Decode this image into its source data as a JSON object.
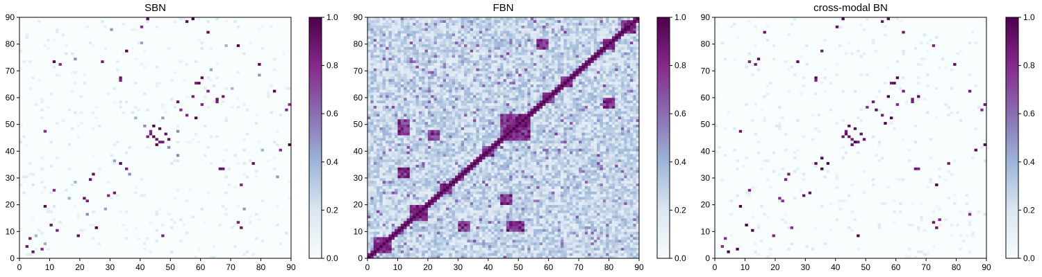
{
  "chart_data": [
    {
      "type": "heatmap",
      "title": "SBN",
      "xlim": [
        0,
        90
      ],
      "ylim": [
        0,
        90
      ],
      "xticks": [
        0,
        10,
        20,
        30,
        40,
        50,
        60,
        70,
        80,
        90
      ],
      "yticks": [
        0,
        10,
        20,
        30,
        40,
        50,
        60,
        70,
        80,
        90
      ],
      "colorbar": {
        "range": [
          0,
          1
        ],
        "ticks": [
          "0.0",
          "0.2",
          "0.4",
          "0.6",
          "0.8",
          "1.0"
        ]
      },
      "pattern": "sparse",
      "strong_cells": [
        [
          2,
          4
        ],
        [
          4,
          2
        ],
        [
          7,
          3
        ],
        [
          3,
          7
        ],
        [
          10,
          12
        ],
        [
          12,
          10
        ],
        [
          11,
          25
        ],
        [
          25,
          11
        ],
        [
          13,
          72
        ],
        [
          72,
          13
        ],
        [
          19,
          8
        ],
        [
          8,
          19
        ],
        [
          21,
          22
        ],
        [
          22,
          21
        ],
        [
          23,
          29
        ],
        [
          29,
          23
        ],
        [
          24,
          31
        ],
        [
          31,
          24
        ],
        [
          27,
          73
        ],
        [
          73,
          27
        ],
        [
          33,
          66
        ],
        [
          66,
          33
        ],
        [
          35,
          33
        ],
        [
          33,
          35
        ],
        [
          42,
          45
        ],
        [
          45,
          42
        ],
        [
          43,
          47
        ],
        [
          47,
          43
        ],
        [
          44,
          49
        ],
        [
          49,
          44
        ],
        [
          45,
          44
        ],
        [
          44,
          45
        ],
        [
          46,
          43
        ],
        [
          43,
          46
        ],
        [
          48,
          46
        ],
        [
          46,
          48
        ],
        [
          47,
          8
        ],
        [
          8,
          47
        ],
        [
          52,
          58
        ],
        [
          58,
          52
        ],
        [
          55,
          53
        ],
        [
          53,
          55
        ],
        [
          57,
          60
        ],
        [
          60,
          57
        ],
        [
          59,
          65
        ],
        [
          65,
          59
        ],
        [
          60,
          67
        ],
        [
          67,
          60
        ],
        [
          62,
          62
        ],
        [
          65,
          58
        ],
        [
          58,
          65
        ],
        [
          67,
          33
        ],
        [
          33,
          67
        ],
        [
          73,
          11
        ],
        [
          11,
          73
        ],
        [
          72,
          79
        ],
        [
          79,
          72
        ],
        [
          77,
          35
        ],
        [
          35,
          77
        ],
        [
          84,
          62
        ],
        [
          62,
          84
        ],
        [
          86,
          40
        ],
        [
          40,
          86
        ],
        [
          88,
          55
        ],
        [
          55,
          88
        ],
        [
          89,
          57
        ],
        [
          57,
          89
        ],
        [
          90,
          42
        ],
        [
          42,
          90
        ]
      ],
      "medium_cells": [
        [
          5,
          8
        ],
        [
          8,
          5
        ],
        [
          16,
          22
        ],
        [
          22,
          16
        ],
        [
          28,
          18
        ],
        [
          18,
          28
        ],
        [
          31,
          36
        ],
        [
          36,
          31
        ],
        [
          38,
          52
        ],
        [
          52,
          38
        ],
        [
          41,
          49
        ],
        [
          49,
          41
        ],
        [
          52,
          47
        ],
        [
          47,
          52
        ],
        [
          63,
          70
        ],
        [
          70,
          63
        ],
        [
          68,
          79
        ],
        [
          79,
          68
        ],
        [
          74,
          18
        ],
        [
          18,
          74
        ],
        [
          80,
          40
        ],
        [
          40,
          80
        ],
        [
          85,
          30
        ],
        [
          30,
          85
        ]
      ]
    },
    {
      "type": "heatmap",
      "title": "FBN",
      "xlim": [
        0,
        90
      ],
      "ylim": [
        0,
        90
      ],
      "xticks": [
        0,
        10,
        20,
        30,
        40,
        50,
        60,
        70,
        80,
        90
      ],
      "yticks": [
        0,
        10,
        20,
        30,
        40,
        50,
        60,
        70,
        80,
        90
      ],
      "colorbar": {
        "range": [
          0,
          1
        ],
        "ticks": [
          "0.0",
          "0.2",
          "0.4",
          "0.6",
          "0.8",
          "1.0"
        ]
      },
      "pattern": "dense",
      "diagonal": "near 1 along the main diagonal with strong adjacent-region blocks",
      "strong_blocks": [
        [
          44,
          54,
          44,
          54
        ],
        [
          24,
          28,
          24,
          28
        ],
        [
          38,
          42,
          38,
          42
        ],
        [
          58,
          62,
          58,
          62
        ],
        [
          78,
          82,
          78,
          82
        ],
        [
          2,
          8,
          2,
          8
        ],
        [
          14,
          20,
          14,
          20
        ],
        [
          64,
          68,
          64,
          68
        ],
        [
          84,
          89,
          84,
          89
        ],
        [
          10,
          14,
          30,
          34
        ],
        [
          30,
          34,
          10,
          14
        ],
        [
          46,
          52,
          10,
          14
        ],
        [
          10,
          14,
          46,
          52
        ],
        [
          56,
          60,
          78,
          82
        ],
        [
          78,
          82,
          56,
          60
        ],
        [
          20,
          24,
          44,
          48
        ],
        [
          44,
          48,
          20,
          24
        ]
      ]
    },
    {
      "type": "heatmap",
      "title": "cross-modal BN",
      "xlim": [
        0,
        90
      ],
      "ylim": [
        0,
        90
      ],
      "xticks": [
        0,
        10,
        20,
        30,
        40,
        50,
        60,
        70,
        80,
        90
      ],
      "yticks": [
        0,
        10,
        20,
        30,
        40,
        50,
        60,
        70,
        80,
        90
      ],
      "colorbar": {
        "range": [
          0,
          1
        ],
        "ticks": [
          "0.0",
          "0.2",
          "0.4",
          "0.6",
          "0.8",
          "1.0"
        ]
      },
      "pattern": "sparse binary",
      "strong_cells": [
        [
          2,
          4
        ],
        [
          4,
          2
        ],
        [
          7,
          3
        ],
        [
          3,
          7
        ],
        [
          10,
          12
        ],
        [
          12,
          10
        ],
        [
          11,
          25
        ],
        [
          25,
          11
        ],
        [
          13,
          72
        ],
        [
          72,
          13
        ],
        [
          19,
          8
        ],
        [
          8,
          19
        ],
        [
          21,
          22
        ],
        [
          22,
          21
        ],
        [
          23,
          29
        ],
        [
          29,
          23
        ],
        [
          24,
          31
        ],
        [
          31,
          24
        ],
        [
          27,
          73
        ],
        [
          73,
          27
        ],
        [
          33,
          66
        ],
        [
          66,
          33
        ],
        [
          35,
          33
        ],
        [
          33,
          35
        ],
        [
          42,
          45
        ],
        [
          45,
          42
        ],
        [
          43,
          47
        ],
        [
          47,
          43
        ],
        [
          44,
          49
        ],
        [
          49,
          44
        ],
        [
          45,
          44
        ],
        [
          44,
          45
        ],
        [
          46,
          43
        ],
        [
          43,
          46
        ],
        [
          48,
          46
        ],
        [
          46,
          48
        ],
        [
          47,
          8
        ],
        [
          8,
          47
        ],
        [
          52,
          58
        ],
        [
          58,
          52
        ],
        [
          55,
          53
        ],
        [
          53,
          55
        ],
        [
          57,
          60
        ],
        [
          60,
          57
        ],
        [
          59,
          65
        ],
        [
          65,
          59
        ],
        [
          60,
          67
        ],
        [
          67,
          60
        ],
        [
          62,
          62
        ],
        [
          65,
          58
        ],
        [
          58,
          65
        ],
        [
          67,
          33
        ],
        [
          33,
          67
        ],
        [
          73,
          11
        ],
        [
          11,
          73
        ],
        [
          72,
          79
        ],
        [
          79,
          72
        ],
        [
          77,
          35
        ],
        [
          35,
          77
        ],
        [
          84,
          62
        ],
        [
          62,
          84
        ],
        [
          86,
          40
        ],
        [
          40,
          86
        ],
        [
          88,
          55
        ],
        [
          55,
          88
        ],
        [
          89,
          57
        ],
        [
          57,
          89
        ],
        [
          90,
          42
        ],
        [
          42,
          90
        ],
        [
          50,
          56
        ],
        [
          56,
          50
        ],
        [
          14,
          74
        ],
        [
          74,
          14
        ],
        [
          16,
          84
        ],
        [
          84,
          16
        ],
        [
          37,
          35
        ],
        [
          35,
          37
        ]
      ]
    }
  ]
}
